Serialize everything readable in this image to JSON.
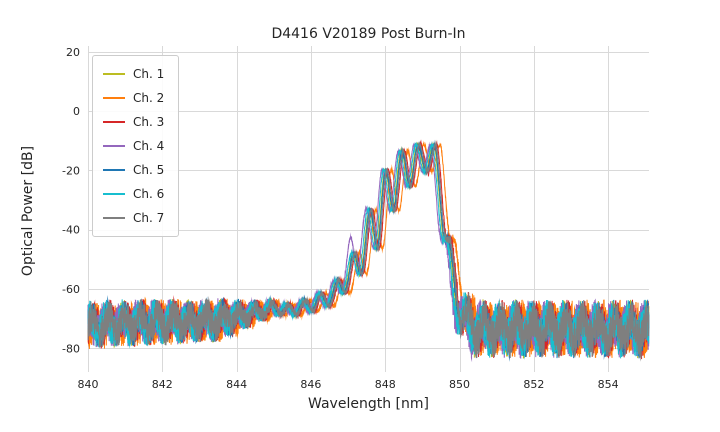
{
  "chart_data": {
    "type": "line",
    "title": "D4416 V20189 Post Burn-In",
    "xlabel": "Wavelength [nm]",
    "ylabel": "Optical Power [dB]",
    "xlim": [
      840,
      855.1
    ],
    "ylim": [
      -88,
      22
    ],
    "x_ticks": [
      840,
      842,
      844,
      846,
      848,
      850,
      852,
      854
    ],
    "y_ticks": [
      20,
      0,
      -20,
      -40,
      -60,
      -80
    ],
    "grid": true,
    "grid_color": "#d9d9d9",
    "tick_color": "#262626",
    "legend_position": "upper-left",
    "ripple_period": 0.44,
    "ripple_phase_peak": 848.89,
    "envelope": {
      "x": [
        840,
        843.5,
        844.5,
        845.0,
        845.4,
        845.8,
        846.2,
        846.6,
        847.0,
        847.4,
        847.8,
        848.2,
        848.6,
        849.0,
        849.35,
        849.6,
        849.8,
        850.0,
        850.4,
        855.1
      ],
      "upper": [
        -69,
        -68,
        -66,
        -64.5,
        -65.5,
        -64,
        -62,
        -59,
        -52,
        -41,
        -24,
        -16,
        -12,
        -11,
        -11.5,
        -30,
        -50,
        -62,
        -70,
        -70
      ],
      "lower": [
        -75,
        -73,
        -70,
        -68,
        -69,
        -68,
        -67,
        -65,
        -60,
        -54,
        -46,
        -34,
        -26,
        -21,
        -19,
        -45,
        -62,
        -72,
        -77,
        -77
      ],
      "noise": [
        5.5,
        5,
        2.5,
        1.2,
        1,
        0.8,
        0.6,
        0.5,
        0.5,
        0.5,
        0.5,
        0.5,
        0.4,
        0.4,
        0.4,
        1,
        2,
        4,
        6.5,
        6.5
      ]
    },
    "series": [
      {
        "name": "Ch. 1",
        "color": "#bcbd22",
        "shift": -0.02,
        "seed": 11
      },
      {
        "name": "Ch. 2",
        "color": "#ff7f0e",
        "shift": 0.15,
        "seed": 22
      },
      {
        "name": "Ch. 3",
        "color": "#d62728",
        "shift": 0.06,
        "seed": 33
      },
      {
        "name": "Ch. 4",
        "color": "#9467bd",
        "shift": -0.1,
        "seed": 44,
        "boost_x": 847.28,
        "boost_amp": 9,
        "boost_w": 0.12
      },
      {
        "name": "Ch. 5",
        "color": "#1f77b4",
        "shift": 0.0,
        "seed": 55
      },
      {
        "name": "Ch. 6",
        "color": "#17becf",
        "shift": -0.06,
        "seed": 66
      },
      {
        "name": "Ch. 7",
        "color": "#7f7f7f",
        "shift": 0.03,
        "seed": 77
      }
    ]
  }
}
